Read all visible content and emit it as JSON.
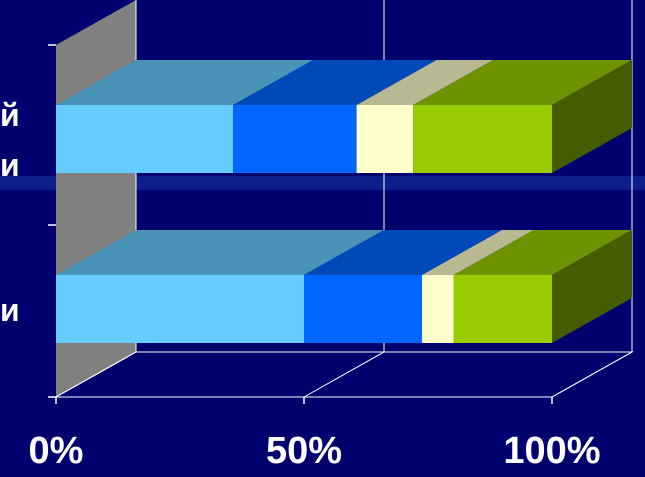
{
  "chart_data": {
    "type": "bar",
    "stacked": true,
    "percent_stacked": true,
    "orientation": "horizontal",
    "style": "3d",
    "categories": [
      "й\nи",
      "и"
    ],
    "series": [
      {
        "values": [
          35.7,
          50.0
        ],
        "color": "#66ccff"
      },
      {
        "values": [
          24.9,
          23.8
        ],
        "color": "#0066ff"
      },
      {
        "values": [
          11.4,
          6.4
        ],
        "color": "#ffffcc"
      },
      {
        "values": [
          28.0,
          19.8
        ],
        "color": "#99cc00"
      }
    ],
    "x_ticks": [
      "0%",
      "50%",
      "100%"
    ],
    "xlim": [
      0,
      100
    ],
    "grid": true,
    "legend": "none",
    "colors": {
      "background": "#00006e",
      "wall": "#808080",
      "gridline": "#ffffff",
      "label": "#ffffff"
    }
  }
}
